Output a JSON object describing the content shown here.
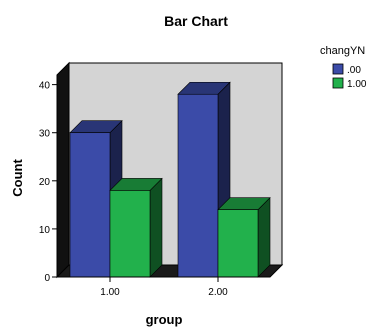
{
  "chart_data": {
    "type": "bar",
    "title": "Bar Chart",
    "xlabel": "group",
    "ylabel": "Count",
    "categories": [
      "1.00",
      "2.00"
    ],
    "series": [
      {
        "name": ".00",
        "values": [
          30,
          38
        ],
        "color": "#3b4ba8"
      },
      {
        "name": "1.00",
        "values": [
          18,
          14
        ],
        "color": "#22b14c"
      }
    ],
    "ylim": [
      0,
      42
    ],
    "yticks": [
      0,
      10,
      20,
      30,
      40
    ],
    "legend": {
      "title": "changYN",
      "position": "top-right"
    },
    "grid": false,
    "style": "3d",
    "background_color": "#d4d4d4"
  }
}
